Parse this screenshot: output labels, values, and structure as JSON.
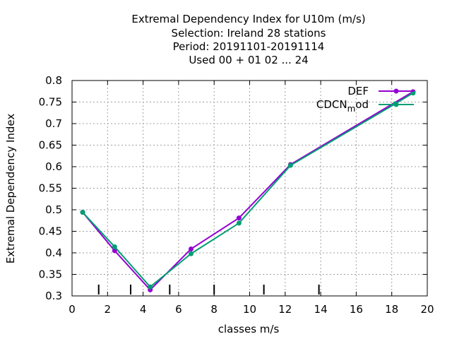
{
  "chart_data": {
    "type": "line",
    "title": [
      "Extremal Dependency Index  for U10m (m/s)",
      "Selection: Ireland     28 stations",
      "Period: 20191101-20191114",
      "Used  00 + 01 02 ... 24"
    ],
    "xlabel": "classes m/s",
    "ylabel": "Extremal Dependency Index",
    "xlim": [
      0,
      20
    ],
    "ylim": [
      0.3,
      0.8
    ],
    "x_ticks": [
      0,
      2,
      4,
      6,
      8,
      10,
      12,
      14,
      16,
      18,
      20
    ],
    "x_tick_labels": [
      "0",
      "2",
      "4",
      "6",
      "8",
      "10",
      "12",
      "14",
      "16",
      "18",
      "20"
    ],
    "y_ticks": [
      0.3,
      0.35,
      0.4,
      0.45,
      0.5,
      0.55,
      0.6,
      0.65,
      0.7,
      0.75,
      0.8
    ],
    "y_tick_labels": [
      "0.3",
      "0.35",
      "0.4",
      "0.45",
      "0.5",
      "0.55",
      "0.6",
      "0.65",
      "0.7",
      "0.75",
      "0.8"
    ],
    "grid": true,
    "legend_position": "top-right",
    "class_boundaries": [
      1.5,
      3.3,
      5.5,
      8.0,
      10.8,
      13.9
    ],
    "series": [
      {
        "name": "DEF",
        "color": "#9400d3",
        "marker": "filled-circle",
        "x": [
          0.6,
          2.4,
          4.4,
          6.7,
          9.4,
          12.3,
          19.2
        ],
        "y": [
          0.494,
          0.405,
          0.314,
          0.409,
          0.481,
          0.605,
          0.774
        ]
      },
      {
        "name": "CDCN_mod",
        "color": "#009e73",
        "marker": "filled-circle",
        "x": [
          0.6,
          2.4,
          4.4,
          6.7,
          9.4,
          12.3,
          18.2,
          19.2
        ],
        "y": [
          0.494,
          0.414,
          0.321,
          0.398,
          0.469,
          0.603,
          0.746,
          0.771
        ]
      }
    ]
  }
}
